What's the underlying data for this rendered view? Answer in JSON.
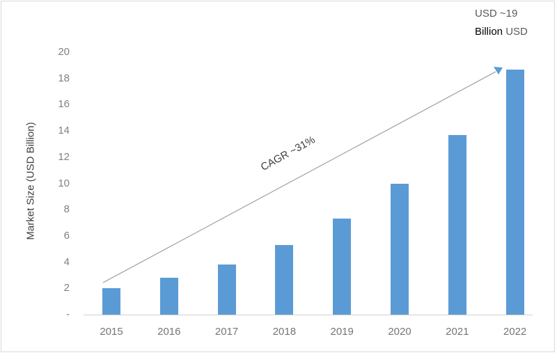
{
  "chart_data": {
    "type": "bar",
    "title": "",
    "xlabel": "",
    "ylabel": "Market Size (USD Billion)",
    "categories": [
      "2015",
      "2016",
      "2017",
      "2018",
      "2019",
      "2020",
      "2021",
      "2022"
    ],
    "values": [
      2.0,
      2.8,
      3.8,
      5.3,
      7.3,
      10.0,
      13.7,
      18.7
    ],
    "ylim": [
      0,
      20
    ],
    "yticks": [
      "-",
      "2",
      "4",
      "6",
      "8",
      "10",
      "12",
      "14",
      "16",
      "18",
      "20"
    ],
    "grid": false,
    "legend": null,
    "bar_color": "#5b9bd5",
    "annotations": [
      {
        "text": "CAGR ~31%",
        "type": "trend-arrow",
        "from": "2015",
        "to": "2022"
      },
      {
        "text_line1": "USD ~19",
        "text_line2_bold": "Billion",
        "text_line2_rest": "USD",
        "anchor": "2022"
      }
    ]
  },
  "labels": {
    "ylabel": "Market Size (USD Billion)",
    "cagr": "CAGR ~31%",
    "end_value_line1": "USD ~19",
    "end_value_line2a": "Billion",
    "end_value_line2b": " USD"
  }
}
